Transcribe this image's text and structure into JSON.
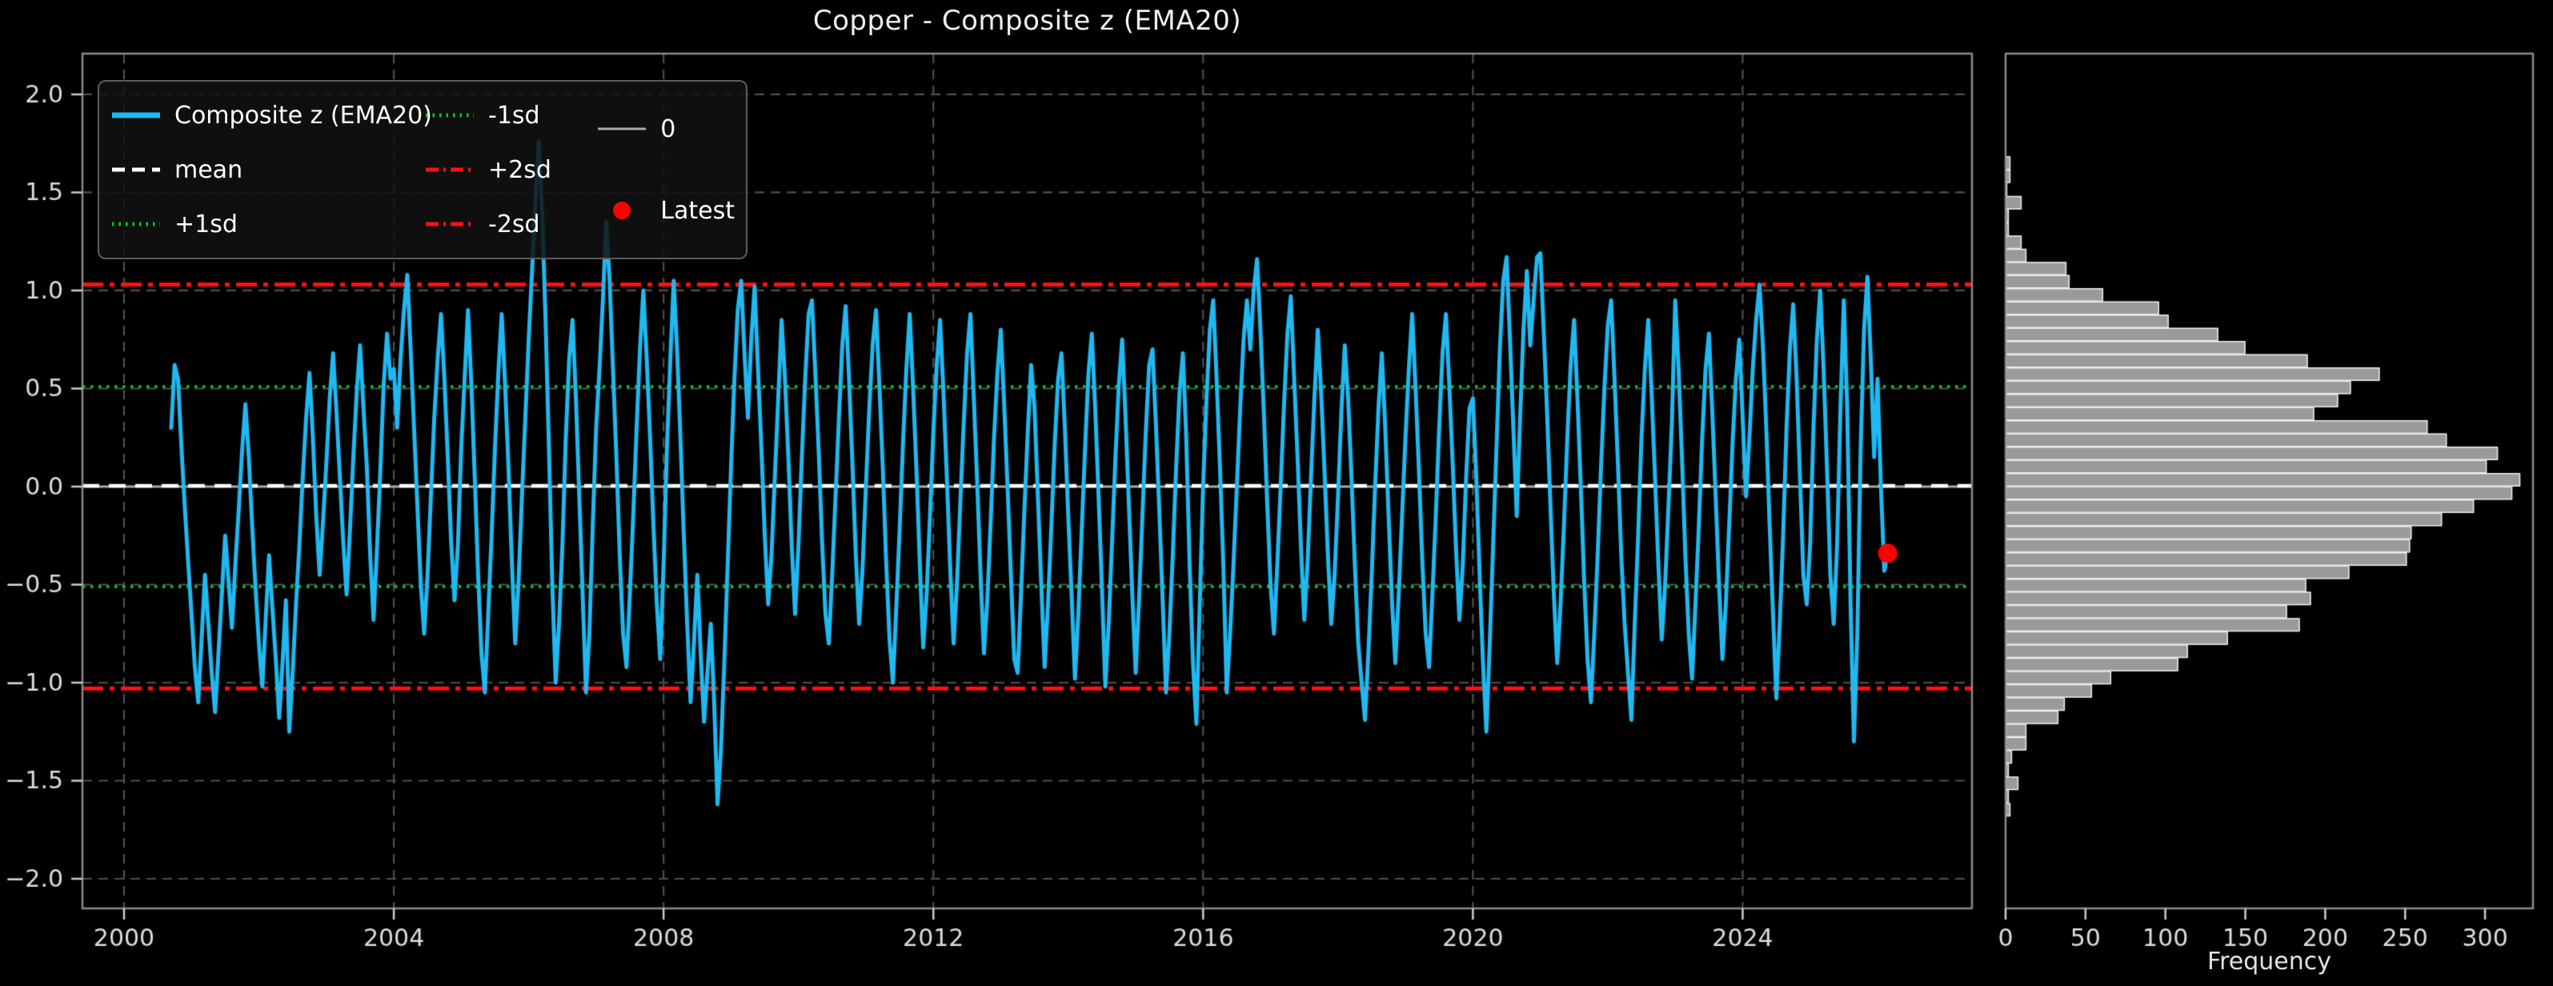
{
  "title": "Copper - Composite z (EMA20)",
  "colors": {
    "background": "#000000",
    "line": "#20b8f0",
    "mean": "#ffffff",
    "sd1": "#00cc22",
    "sd2": "#ff1111",
    "zero": "#aaaaaa",
    "latest": "#ff0000",
    "grid": "#4f4f4f",
    "spine": "#8a8a8a",
    "tick": "#cccccc",
    "text": "#dcdcdc",
    "hist_fill": "#9a9a9a",
    "hist_edge": "#eeeeee"
  },
  "legend": {
    "items": [
      {
        "label": "Composite z (EMA20)",
        "color": "#20b8f0",
        "dash": "solid",
        "lw": 7,
        "kind": "line"
      },
      {
        "label": "mean",
        "color": "#ffffff",
        "dash": "dashed",
        "lw": 5,
        "kind": "line"
      },
      {
        "label": "+1sd",
        "color": "#00cc22",
        "dash": "dotted",
        "lw": 5,
        "kind": "line"
      },
      {
        "label": "-1sd",
        "color": "#00cc22",
        "dash": "dotted",
        "lw": 5,
        "kind": "line"
      },
      {
        "label": "+2sd",
        "color": "#ff1111",
        "dash": "dashdot",
        "lw": 5,
        "kind": "line"
      },
      {
        "label": "-2sd",
        "color": "#ff1111",
        "dash": "dashdot",
        "lw": 5,
        "kind": "line"
      },
      {
        "label": "0",
        "color": "#aaaaaa",
        "dash": "solid",
        "lw": 3,
        "kind": "line"
      },
      {
        "label": "Latest",
        "color": "#ff0000",
        "dash": "solid",
        "lw": 0,
        "kind": "marker"
      }
    ]
  },
  "chart_data": [
    {
      "type": "line",
      "title": "Copper - Composite z (EMA20)",
      "xlim": [
        1999.383,
        2027.4
      ],
      "ylim": [
        -2.151,
        2.208
      ],
      "xticks": [
        2000,
        2004,
        2008,
        2012,
        2016,
        2020,
        2024
      ],
      "xtick_labels": [
        "2000",
        "2004",
        "2008",
        "2012",
        "2016",
        "2020",
        "2024"
      ],
      "yticks": [
        2.0,
        1.5,
        1.0,
        0.5,
        0.0,
        -0.5,
        -1.0,
        -1.5,
        -2.0
      ],
      "ytick_labels": [
        "2.0",
        "1.5",
        "1.0",
        "0.5",
        "0.0",
        "−0.5",
        "−1.0",
        "−1.5",
        "−2.0"
      ],
      "grid": true,
      "legend_position": "upper left",
      "ref_lines": [
        {
          "name": "0",
          "value": 0.0,
          "color": "#aaaaaa",
          "dash": "solid",
          "lw": 3
        },
        {
          "name": "mean",
          "value": 0.004,
          "color": "#ffffff",
          "dash": "dashed",
          "lw": 4.5
        },
        {
          "name": "+1sd",
          "value": 0.51,
          "color": "#00cc22",
          "dash": "dotted",
          "lw": 3.5
        },
        {
          "name": "-1sd",
          "value": -0.51,
          "color": "#00cc22",
          "dash": "dotted",
          "lw": 3.5
        },
        {
          "name": "+2sd",
          "value": 1.03,
          "color": "#ff1111",
          "dash": "dashdot",
          "lw": 5
        },
        {
          "name": "-2sd",
          "value": -1.03,
          "color": "#ff1111",
          "dash": "dashdot",
          "lw": 5
        }
      ],
      "latest": {
        "x": 2026.15,
        "y": -0.34
      },
      "series": [
        {
          "name": "Composite z (EMA20)",
          "x_start": 2000.7,
          "x_step": 0.05,
          "values": [
            0.3,
            0.62,
            0.55,
            0.21,
            -0.1,
            -0.38,
            -0.65,
            -0.92,
            -1.1,
            -0.78,
            -0.45,
            -0.7,
            -0.95,
            -1.15,
            -0.85,
            -0.55,
            -0.25,
            -0.48,
            -0.72,
            -0.4,
            -0.12,
            0.18,
            0.42,
            0.15,
            -0.2,
            -0.52,
            -0.8,
            -1.02,
            -0.68,
            -0.35,
            -0.62,
            -0.88,
            -1.18,
            -0.9,
            -0.58,
            -1.25,
            -0.95,
            -0.6,
            -0.3,
            0.05,
            0.35,
            0.58,
            0.25,
            -0.15,
            -0.45,
            -0.18,
            0.12,
            0.45,
            0.68,
            0.38,
            0.05,
            -0.28,
            -0.55,
            -0.22,
            0.15,
            0.48,
            0.72,
            0.4,
            0.1,
            -0.35,
            -0.68,
            -0.32,
            0.08,
            0.52,
            0.78,
            0.55,
            0.6,
            0.3,
            0.65,
            0.9,
            1.08,
            0.7,
            0.3,
            -0.1,
            -0.5,
            -0.75,
            -0.45,
            -0.05,
            0.35,
            0.65,
            0.88,
            0.55,
            0.15,
            -0.28,
            -0.58,
            -0.3,
            0.2,
            0.55,
            0.9,
            0.52,
            0.05,
            -0.45,
            -0.85,
            -1.05,
            -0.65,
            -0.25,
            0.2,
            0.58,
            0.88,
            0.52,
            0.1,
            -0.38,
            -0.8,
            -0.48,
            -0.05,
            0.35,
            0.75,
            1.1,
            1.45,
            1.76,
            1.4,
            0.85,
            0.2,
            -0.5,
            -1.0,
            -0.7,
            -0.3,
            0.25,
            0.65,
            0.85,
            0.45,
            -0.05,
            -0.55,
            -1.05,
            -0.75,
            -0.2,
            0.3,
            0.6,
            0.95,
            1.35,
            1.05,
            0.6,
            0.15,
            -0.35,
            -0.75,
            -0.92,
            -0.55,
            -0.15,
            0.3,
            0.7,
            1.0,
            0.65,
            0.25,
            -0.2,
            -0.6,
            -0.88,
            -0.4,
            0.2,
            0.65,
            1.05,
            0.7,
            0.25,
            -0.25,
            -0.7,
            -1.1,
            -0.8,
            -0.45,
            -0.85,
            -1.2,
            -0.95,
            -0.7,
            -1.1,
            -1.62,
            -1.35,
            -0.9,
            -0.4,
            0.1,
            0.55,
            0.9,
            1.05,
            0.68,
            0.35,
            0.75,
            1.02,
            0.6,
            0.2,
            -0.25,
            -0.6,
            -0.35,
            0.05,
            0.45,
            0.85,
            0.55,
            0.15,
            -0.3,
            -0.65,
            -0.3,
            0.15,
            0.55,
            0.88,
            0.95,
            0.58,
            0.18,
            -0.28,
            -0.65,
            -0.8,
            -0.45,
            -0.05,
            0.35,
            0.72,
            0.92,
            0.55,
            0.12,
            -0.35,
            -0.7,
            -0.42,
            0.0,
            0.4,
            0.72,
            0.9,
            0.52,
            0.1,
            -0.38,
            -0.78,
            -1.0,
            -0.62,
            -0.22,
            0.22,
            0.6,
            0.88,
            0.5,
            0.08,
            -0.4,
            -0.82,
            -0.55,
            -0.15,
            0.28,
            0.62,
            0.85,
            0.48,
            0.05,
            -0.42,
            -0.8,
            -0.5,
            -0.08,
            0.32,
            0.68,
            0.88,
            0.45,
            0.02,
            -0.45,
            -0.85,
            -0.58,
            -0.18,
            0.25,
            0.58,
            0.8,
            0.42,
            0.0,
            -0.45,
            -0.88,
            -0.95,
            -0.55,
            -0.12,
            0.28,
            0.62,
            0.4,
            -0.05,
            -0.5,
            -0.92,
            -0.6,
            -0.2,
            0.22,
            0.55,
            0.68,
            0.3,
            -0.15,
            -0.55,
            -0.98,
            -0.65,
            -0.22,
            0.2,
            0.58,
            0.78,
            0.4,
            -0.05,
            -0.52,
            -1.02,
            -0.7,
            -0.28,
            0.15,
            0.52,
            0.75,
            0.35,
            -0.1,
            -0.55,
            -0.95,
            -0.58,
            -0.15,
            0.28,
            0.62,
            0.7,
            0.32,
            -0.12,
            -0.58,
            -1.05,
            -0.75,
            -0.35,
            0.1,
            0.48,
            0.68,
            0.25,
            -0.4,
            -0.9,
            -1.21,
            -0.6,
            0.0,
            0.45,
            0.8,
            0.95,
            0.55,
            0.1,
            -0.4,
            -1.05,
            -0.75,
            -0.4,
            0.0,
            0.4,
            0.75,
            0.95,
            0.7,
            1.0,
            1.16,
            0.8,
            0.38,
            -0.08,
            -0.5,
            -0.75,
            -0.4,
            0.0,
            0.42,
            0.78,
            0.97,
            0.55,
            0.15,
            -0.3,
            -0.68,
            -0.38,
            0.05,
            0.45,
            0.8,
            0.48,
            0.08,
            -0.35,
            -0.7,
            -0.45,
            -0.05,
            0.38,
            0.72,
            0.45,
            0.05,
            -0.4,
            -0.8,
            -1.0,
            -1.19,
            -0.85,
            -0.45,
            0.0,
            0.4,
            0.68,
            0.3,
            -0.15,
            -0.58,
            -0.9,
            -0.55,
            -0.15,
            0.25,
            0.6,
            0.88,
            0.5,
            0.08,
            -0.38,
            -0.75,
            -0.92,
            -0.55,
            -0.15,
            0.3,
            0.68,
            0.88,
            0.52,
            0.12,
            -0.32,
            -0.68,
            -0.4,
            0.05,
            0.4,
            0.45,
            0.05,
            -0.45,
            -0.9,
            -1.25,
            -0.8,
            -0.3,
            0.2,
            0.7,
            1.05,
            1.17,
            0.75,
            0.3,
            -0.15,
            0.35,
            0.8,
            1.1,
            0.72,
            0.95,
            1.17,
            1.19,
            0.8,
            0.38,
            -0.1,
            -0.55,
            -0.9,
            -0.6,
            -0.2,
            0.25,
            0.62,
            0.85,
            0.45,
            0.0,
            -0.48,
            -0.88,
            -1.1,
            -0.75,
            -0.35,
            0.1,
            0.5,
            0.82,
            0.95,
            0.55,
            0.12,
            -0.35,
            -0.7,
            -0.95,
            -1.19,
            -0.7,
            -0.25,
            0.25,
            0.6,
            0.85,
            0.48,
            0.05,
            -0.4,
            -0.78,
            -0.5,
            -0.1,
            0.32,
            0.95,
            0.6,
            0.15,
            -0.35,
            -0.75,
            -0.98,
            -0.6,
            -0.2,
            0.25,
            0.6,
            0.78,
            0.38,
            -0.05,
            -0.5,
            -0.88,
            -0.6,
            -0.2,
            0.22,
            0.55,
            0.75,
            0.35,
            -0.05,
            0.25,
            0.6,
            0.85,
            1.03,
            0.72,
            0.3,
            -0.2,
            -0.65,
            -1.08,
            -0.7,
            -0.25,
            0.3,
            0.7,
            0.93,
            0.55,
            0.05,
            -0.45,
            -0.6,
            -0.3,
            0.3,
            0.75,
            1.0,
            0.6,
            0.1,
            -0.45,
            -0.7,
            -0.3,
            0.4,
            0.95,
            0.4,
            -0.6,
            -1.3,
            -0.75,
            0.2,
            0.8,
            1.07,
            0.65,
            0.15,
            0.55,
            0.0,
            -0.43,
            -0.34
          ]
        }
      ]
    },
    {
      "type": "bar",
      "orientation": "horizontal",
      "xlabel": "Frequency",
      "xlim": [
        0,
        330
      ],
      "ylim": [
        -2.151,
        2.208
      ],
      "xticks": [
        0,
        50,
        100,
        150,
        200,
        250,
        300
      ],
      "xtick_labels": [
        "0",
        "50",
        "100",
        "150",
        "200",
        "250",
        "300"
      ],
      "grid": false,
      "bin_center_start": 1.65,
      "bin_step": -0.0673,
      "bin_height": 0.0673,
      "counts": [
        3,
        3,
        1,
        10,
        2,
        2,
        10,
        13,
        38,
        40,
        61,
        96,
        102,
        133,
        150,
        189,
        234,
        216,
        208,
        193,
        264,
        276,
        308,
        301,
        322,
        317,
        293,
        273,
        254,
        253,
        251,
        215,
        188,
        191,
        176,
        184,
        139,
        114,
        108,
        66,
        54,
        37,
        33,
        13,
        13,
        4,
        2,
        8,
        2,
        3
      ]
    }
  ],
  "hist": {
    "xlabel": "Frequency"
  }
}
